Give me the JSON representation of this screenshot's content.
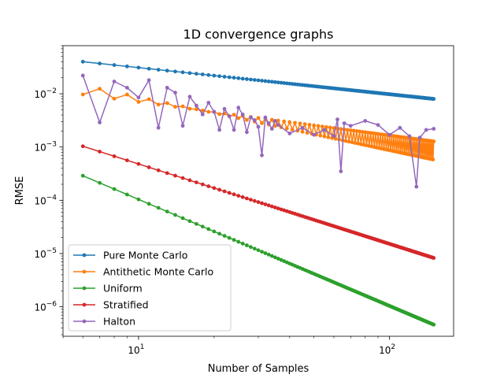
{
  "chart_data": {
    "type": "line",
    "title": "1D convergence graphs",
    "xlabel": "Number of Samples",
    "ylabel": "RMSE",
    "xscale": "log",
    "yscale": "log",
    "xlim": [
      5.0,
      180.0
    ],
    "ylim": [
      2.8e-07,
      0.08
    ],
    "x_ticks": [
      {
        "value": 10,
        "base": "10",
        "exp": "1"
      },
      {
        "value": 100,
        "base": "10",
        "exp": "2"
      }
    ],
    "y_ticks": [
      {
        "value": 1e-06,
        "base": "10",
        "exp": "−6"
      },
      {
        "value": 1e-05,
        "base": "10",
        "exp": "−5"
      },
      {
        "value": 0.0001,
        "base": "10",
        "exp": "−4"
      },
      {
        "value": 0.001,
        "base": "10",
        "exp": "−3"
      },
      {
        "value": 0.01,
        "base": "10",
        "exp": "−2"
      }
    ],
    "grid": false,
    "legend_position": "lower-left",
    "x_range": [
      6,
      150
    ],
    "series": [
      {
        "name": "Pure Monte Carlo",
        "color": "#1f77b4",
        "model": "power",
        "c": 0.098,
        "p": 0.5
      },
      {
        "name": "Antithetic Monte Carlo",
        "color": "#ff7f0e",
        "model": "oscillating",
        "odd_c": 0.087,
        "odd_p": 1.0,
        "even_c": 0.03,
        "even_p": 0.63
      },
      {
        "name": "Uniform",
        "color": "#2ca02c",
        "model": "power",
        "c": 0.0104,
        "p": 2.0
      },
      {
        "name": "Stratified",
        "color": "#d62728",
        "model": "power",
        "c": 0.0152,
        "p": 1.5
      },
      {
        "name": "Halton",
        "color": "#9467bd",
        "model": "halton",
        "points": [
          [
            6,
            0.022
          ],
          [
            7,
            0.0029
          ],
          [
            8,
            0.017
          ],
          [
            9,
            0.013
          ],
          [
            10,
            0.0085
          ],
          [
            11,
            0.018
          ],
          [
            12,
            0.0023
          ],
          [
            13,
            0.013
          ],
          [
            14,
            0.0105
          ],
          [
            15,
            0.0025
          ],
          [
            16,
            0.0088
          ],
          [
            17,
            0.006
          ],
          [
            18,
            0.0041
          ],
          [
            19,
            0.0068
          ],
          [
            20,
            0.0046
          ],
          [
            21,
            0.0021
          ],
          [
            22,
            0.0052
          ],
          [
            23,
            0.0038
          ],
          [
            24,
            0.0021
          ],
          [
            25,
            0.0055
          ],
          [
            26,
            0.0041
          ],
          [
            27,
            0.0019
          ],
          [
            28,
            0.0036
          ],
          [
            29,
            0.0032
          ],
          [
            30,
            0.0024
          ],
          [
            31,
            0.0007
          ],
          [
            32,
            0.0036
          ],
          [
            33,
            0.0028
          ],
          [
            34,
            0.0022
          ],
          [
            35,
            0.0031
          ],
          [
            36,
            0.0026
          ],
          [
            40,
            0.0018
          ],
          [
            45,
            0.0023
          ],
          [
            50,
            0.0017
          ],
          [
            55,
            0.0021
          ],
          [
            60,
            0.0016
          ],
          [
            62,
            0.0033
          ],
          [
            64,
            0.00035
          ],
          [
            66,
            0.0028
          ],
          [
            70,
            0.0025
          ],
          [
            80,
            0.0031
          ],
          [
            90,
            0.0026
          ],
          [
            100,
            0.0017
          ],
          [
            110,
            0.0023
          ],
          [
            120,
            0.0016
          ],
          [
            128,
            0.00018
          ],
          [
            132,
            0.0015
          ],
          [
            140,
            0.0021
          ],
          [
            150,
            0.0022
          ]
        ]
      }
    ]
  }
}
